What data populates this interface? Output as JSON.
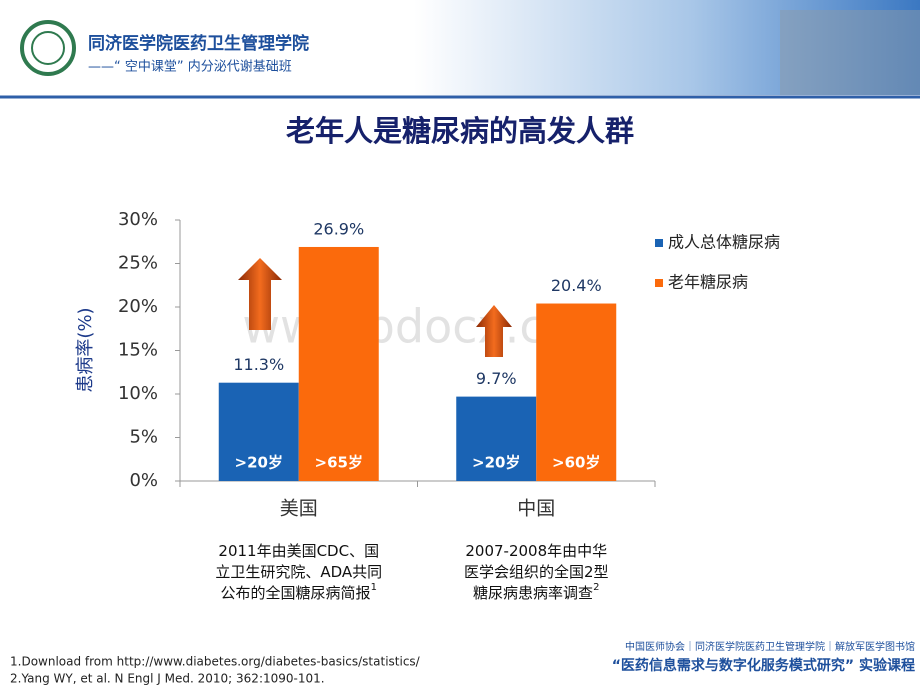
{
  "header": {
    "institution": "同济医学院医药卫生管理学院",
    "course": "——“ 空中课堂” 内分泌代谢基础班"
  },
  "chart_data": {
    "type": "bar",
    "title": "老年人是糖尿病的高发人群",
    "y_label": "患病率(%)",
    "categories": [
      "美国",
      "中国"
    ],
    "series": [
      {
        "name": "成人总体糖尿病",
        "color": "#1a63b4",
        "values": [
          11.3,
          9.7
        ],
        "value_labels": [
          "11.3%",
          "9.7%"
        ],
        "bar_labels": [
          ">20岁",
          ">20岁"
        ]
      },
      {
        "name": "老年糖尿病",
        "color": "#fb6a0c",
        "values": [
          26.9,
          20.4
        ],
        "value_labels": [
          "26.9%",
          "20.4%"
        ],
        "bar_labels": [
          ">65岁",
          ">60岁"
        ]
      }
    ],
    "ylim": [
      0,
      30
    ],
    "yticks": [
      {
        "value": 0,
        "label": "0%"
      },
      {
        "value": 5,
        "label": "5%"
      },
      {
        "value": 10,
        "label": "10%"
      },
      {
        "value": 15,
        "label": "15%"
      },
      {
        "value": 20,
        "label": "20%"
      },
      {
        "value": 25,
        "label": "25%"
      },
      {
        "value": 30,
        "label": "30%"
      }
    ],
    "legend": "right",
    "category_notes": [
      {
        "lines": [
          "2011年由美国CDC、国",
          "立卫生研究院、ADA共同",
          "公布的全国糖尿病简报"
        ],
        "sup": "1"
      },
      {
        "lines": [
          "2007-2008年由中华",
          "医学会组织的全国2型",
          "糖尿病患病率调查"
        ],
        "sup": "2"
      }
    ]
  },
  "watermark": "www.bdocx.com",
  "footnotes": [
    "1.Download from http://www.diabetes.org/diabetes-basics/statistics/",
    "2.Yang WY, et al. N Engl J Med. 2010; 362:1090-101."
  ],
  "footer": {
    "partners": "中国医师协会｜同济医学院医药卫生管理学院｜解放军医学图书馆",
    "project": "“医药信息需求与数字化服务模式研究” 实验课程"
  }
}
